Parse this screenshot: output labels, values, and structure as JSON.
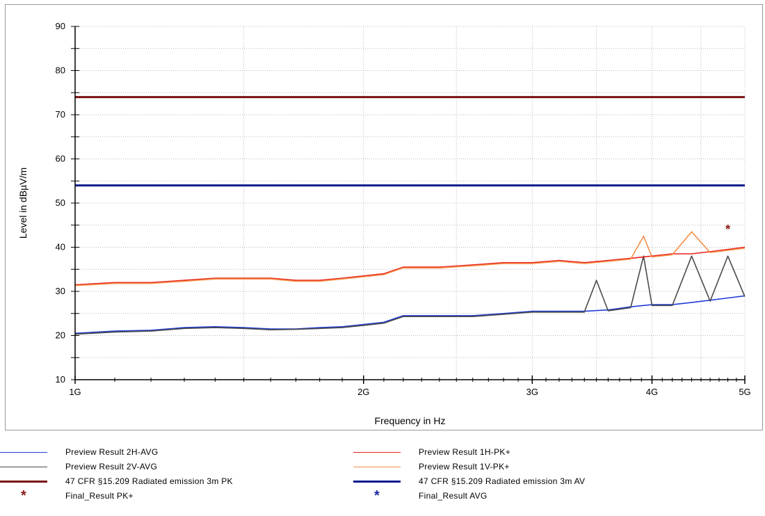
{
  "chart_data": {
    "type": "line",
    "title": "",
    "xlabel": "Frequency in Hz",
    "ylabel": "Level in dBµV/m",
    "x_scale": "log",
    "xlim": [
      1000000000,
      5000000000
    ],
    "ylim": [
      10,
      90
    ],
    "xticks": [
      {
        "value": 1000000000,
        "label": "1G"
      },
      {
        "value": 2000000000,
        "label": "2G"
      },
      {
        "value": 3000000000,
        "label": "3G"
      },
      {
        "value": 4000000000,
        "label": "4G"
      },
      {
        "value": 5000000000,
        "label": "5G"
      }
    ],
    "yticks": [
      10,
      20,
      30,
      40,
      50,
      60,
      70,
      80,
      90
    ],
    "grid": true,
    "legend_position": "bottom",
    "series": [
      {
        "name": "Preview Result 2H-AVG",
        "color": "#1f3cd6",
        "x": [
          1000000000,
          1100000000,
          1200000000,
          1300000000,
          1400000000,
          1500000000,
          1600000000,
          1700000000,
          1800000000,
          1900000000,
          2000000000,
          2100000000,
          2200000000,
          2400000000,
          2600000000,
          2800000000,
          3000000000,
          3200000000,
          3400000000,
          3600000000,
          3800000000,
          4000000000,
          4200000000,
          4400000000,
          4600000000,
          4800000000,
          5000000000
        ],
        "values": [
          20.5,
          21.0,
          21.2,
          21.8,
          22.0,
          21.8,
          21.5,
          21.5,
          21.8,
          22.0,
          22.5,
          23.0,
          24.5,
          24.5,
          24.5,
          25.0,
          25.5,
          25.5,
          25.5,
          25.8,
          26.5,
          27.0,
          27.0,
          27.5,
          28.0,
          28.5,
          29.0
        ]
      },
      {
        "name": "Preview Result 2V-AVG",
        "color": "#4a4a4a",
        "x": [
          1000000000,
          1100000000,
          1200000000,
          1300000000,
          1400000000,
          1500000000,
          1600000000,
          1700000000,
          1800000000,
          1900000000,
          2000000000,
          2100000000,
          2200000000,
          2400000000,
          2600000000,
          2800000000,
          3000000000,
          3200000000,
          3400000000,
          3500000000,
          3600000000,
          3800000000,
          3920000000,
          4000000000,
          4200000000,
          4400000000,
          4600000000,
          4800000000,
          5000000000
        ],
        "values": [
          20.3,
          20.8,
          21.0,
          21.6,
          21.8,
          21.6,
          21.3,
          21.4,
          21.6,
          21.8,
          22.3,
          22.8,
          24.3,
          24.3,
          24.3,
          24.8,
          25.3,
          25.3,
          25.3,
          32.5,
          25.6,
          26.3,
          38.0,
          26.8,
          26.8,
          38.0,
          27.8,
          38.0,
          28.8
        ]
      },
      {
        "name": "Preview Result 1H-PK+",
        "color": "#e8201a",
        "x": [
          1000000000,
          1100000000,
          1200000000,
          1300000000,
          1400000000,
          1500000000,
          1600000000,
          1700000000,
          1800000000,
          1900000000,
          2000000000,
          2100000000,
          2200000000,
          2400000000,
          2600000000,
          2800000000,
          3000000000,
          3200000000,
          3400000000,
          3600000000,
          3800000000,
          4000000000,
          4200000000,
          4400000000,
          4600000000,
          4800000000,
          5000000000
        ],
        "values": [
          31.5,
          32.0,
          32.0,
          32.5,
          33.0,
          33.0,
          33.0,
          32.5,
          32.5,
          33.0,
          33.5,
          34.0,
          35.5,
          35.5,
          36.0,
          36.5,
          36.5,
          37.0,
          36.5,
          37.0,
          37.5,
          38.0,
          38.5,
          38.5,
          39.0,
          39.5,
          40.0
        ]
      },
      {
        "name": "Preview Result 1V-PK+",
        "color": "#f5904a",
        "x": [
          1000000000,
          1100000000,
          1200000000,
          1300000000,
          1400000000,
          1500000000,
          1600000000,
          1700000000,
          1800000000,
          1900000000,
          2000000000,
          2100000000,
          2200000000,
          2400000000,
          2600000000,
          2800000000,
          3000000000,
          3200000000,
          3400000000,
          3600000000,
          3800000000,
          3920000000,
          4000000000,
          4200000000,
          4400000000,
          4600000000,
          4800000000,
          5000000000
        ],
        "values": [
          31.3,
          31.8,
          31.8,
          32.3,
          32.8,
          32.8,
          32.8,
          32.3,
          32.3,
          32.8,
          33.3,
          33.8,
          35.3,
          35.3,
          35.8,
          36.3,
          36.3,
          36.8,
          36.3,
          36.8,
          37.3,
          42.5,
          37.8,
          38.3,
          43.5,
          38.8,
          39.3,
          39.8
        ]
      },
      {
        "name": "47 CFR §15.209 Radiated emission 3m PK",
        "color": "#7a1010",
        "x": [
          1000000000,
          5000000000
        ],
        "values": [
          74,
          74
        ]
      },
      {
        "name": "47 CFR §15.209 Radiated emission 3m AV",
        "color": "#0a1a8c",
        "x": [
          1000000000,
          5000000000
        ],
        "values": [
          54,
          54
        ]
      }
    ],
    "markers": [
      {
        "name": "Final_Result PK+",
        "color": "#8b1a1a",
        "x": [
          4800000000
        ],
        "values": [
          44
        ]
      },
      {
        "name": "Final_Result AVG",
        "color": "#1a2aa0",
        "x": [],
        "values": []
      }
    ]
  },
  "legend": {
    "items": [
      {
        "label": "Preview Result 2H-AVG",
        "color": "#1f3cd6",
        "kind": "line",
        "thick": false
      },
      {
        "label": "Preview Result 1H-PK+",
        "color": "#e8201a",
        "kind": "line",
        "thick": false
      },
      {
        "label": "Preview Result 2V-AVG",
        "color": "#4a4a4a",
        "kind": "line",
        "thick": false
      },
      {
        "label": "Preview Result 1V-PK+",
        "color": "#f5904a",
        "kind": "line",
        "thick": false
      },
      {
        "label": "47 CFR §15.209 Radiated emission 3m PK",
        "color": "#7a1010",
        "kind": "line",
        "thick": true
      },
      {
        "label": "47 CFR §15.209 Radiated emission 3m AV",
        "color": "#0a1a8c",
        "kind": "line",
        "thick": true
      },
      {
        "label": "Final_Result PK+",
        "color": "#8b1a1a",
        "kind": "star",
        "thick": false
      },
      {
        "label": "Final_Result AVG",
        "color": "#1a2aa0",
        "kind": "star",
        "thick": false
      }
    ]
  }
}
